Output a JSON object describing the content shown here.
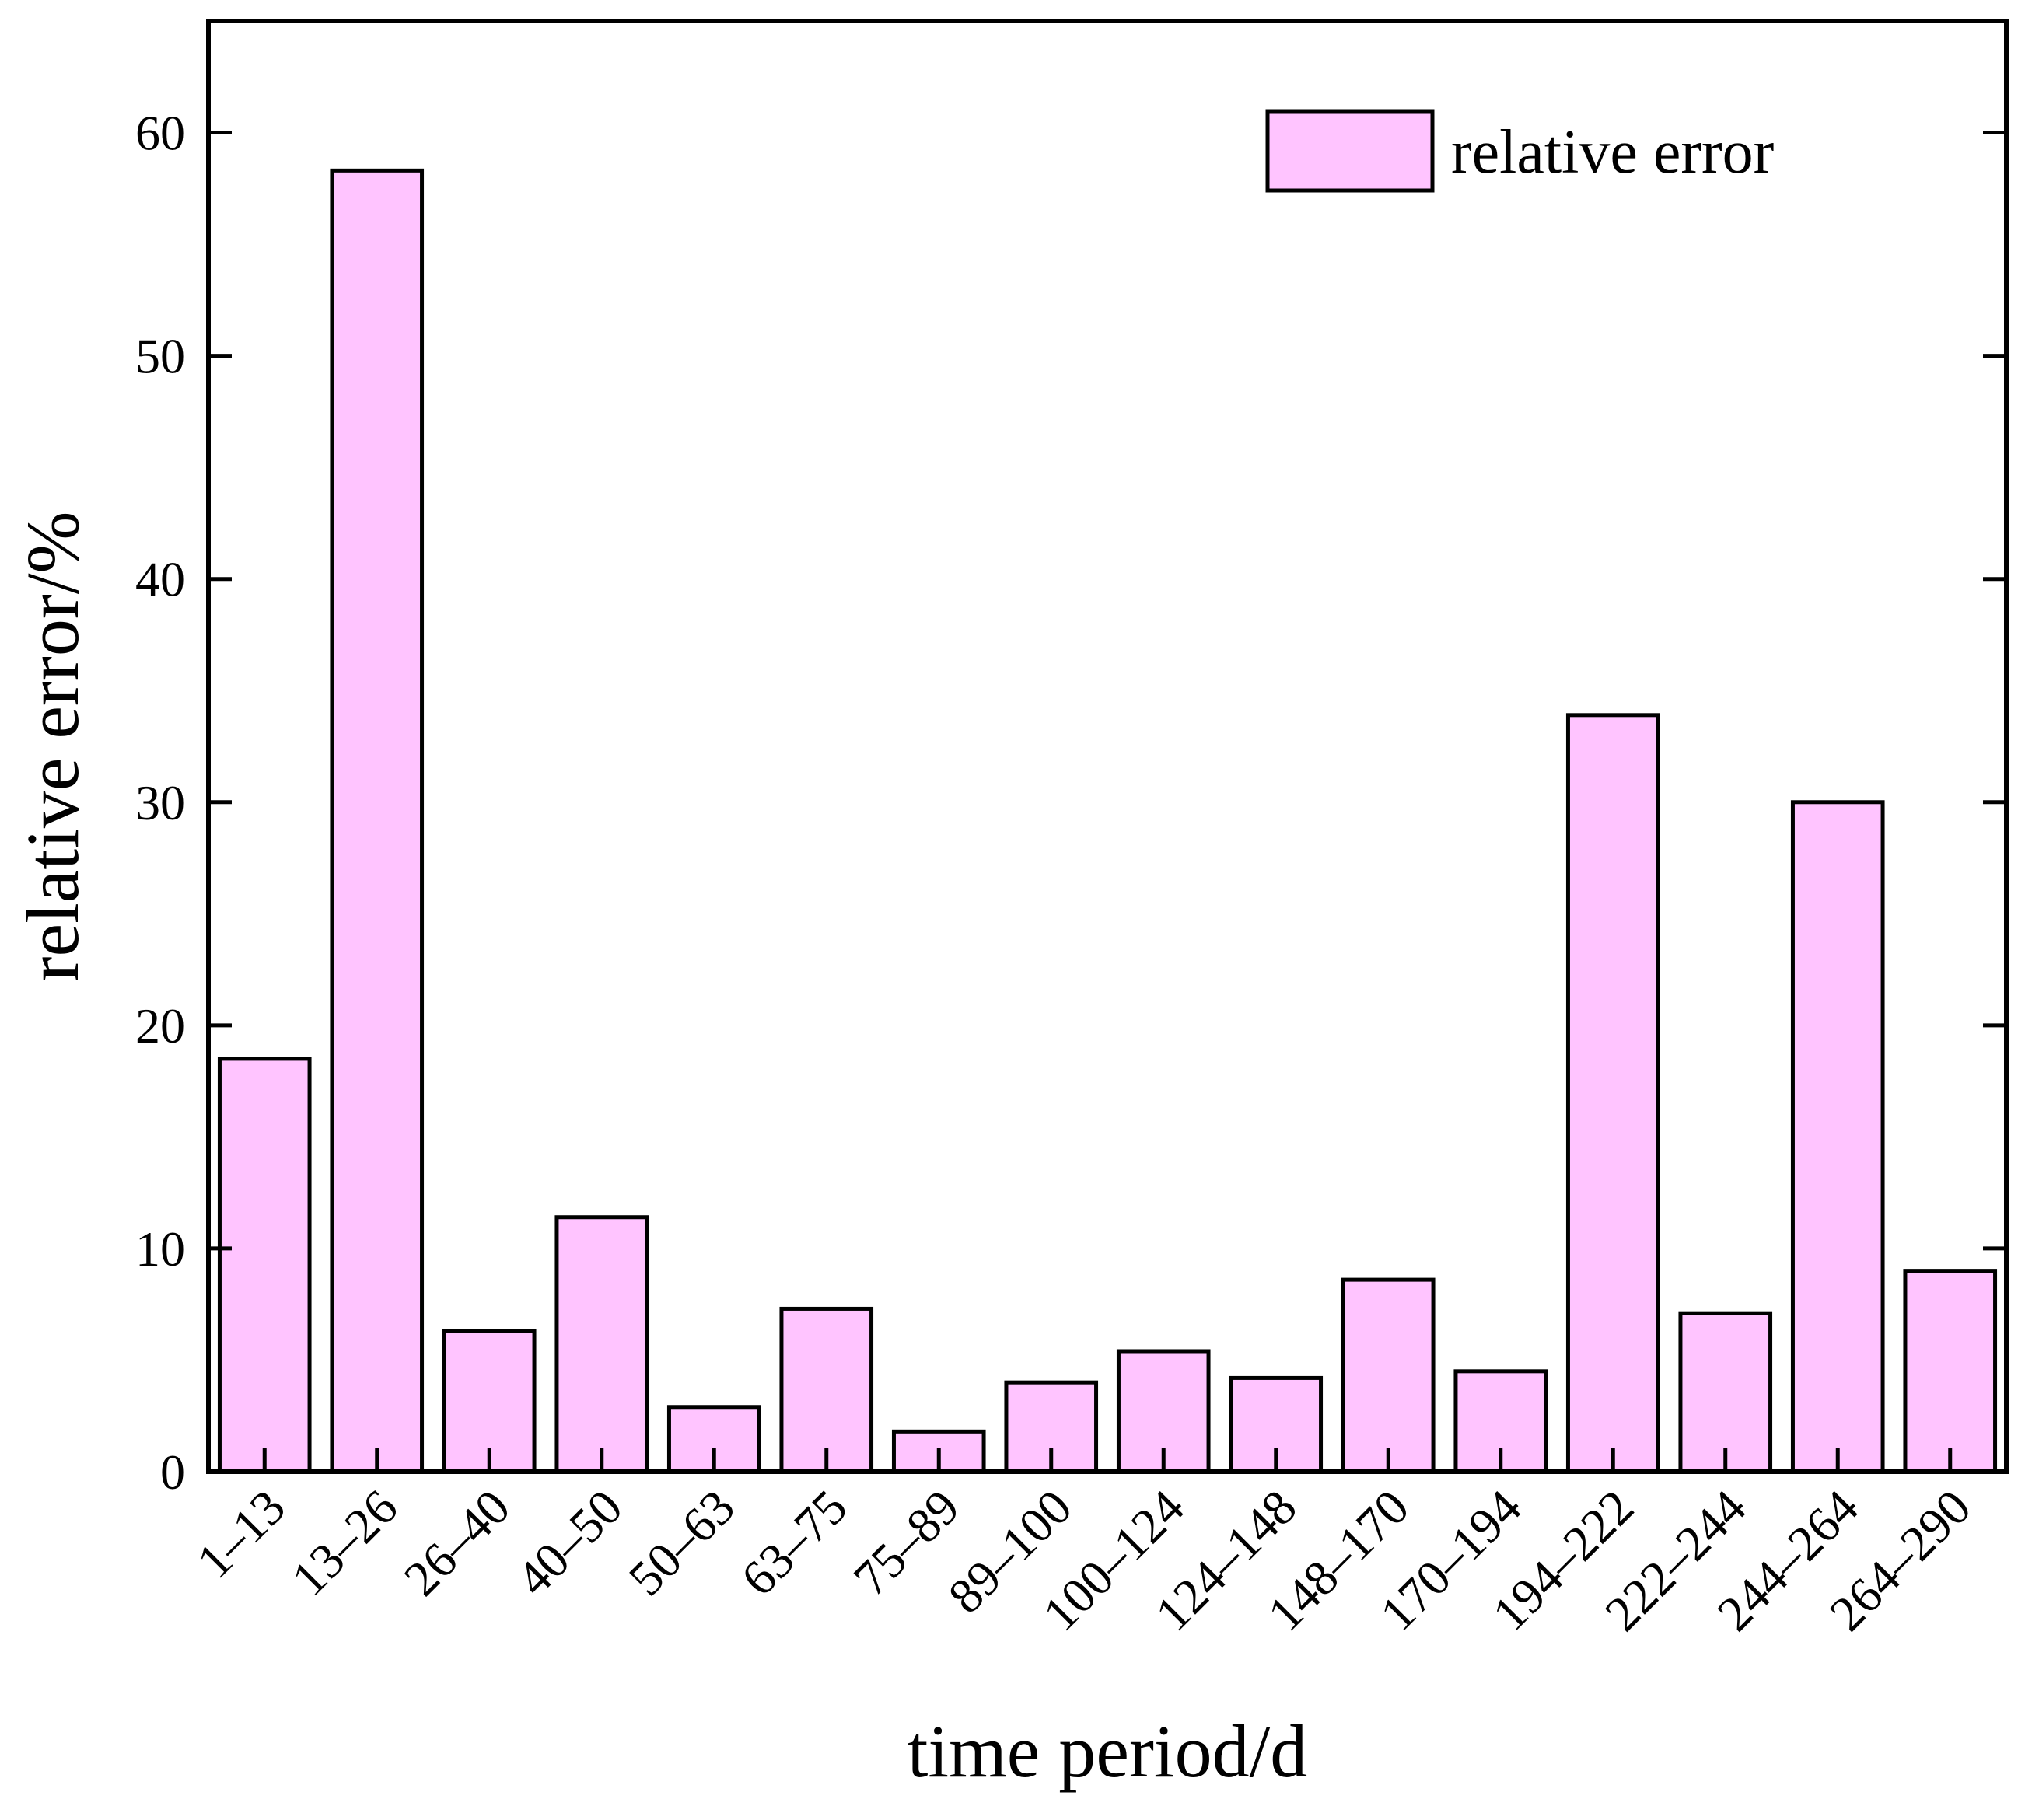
{
  "chart_data": {
    "type": "bar",
    "title": "",
    "xlabel": "time period/d",
    "ylabel": "relative error/%",
    "categories": [
      "1–13",
      "13–26",
      "26–40",
      "40–50",
      "50–63",
      "63–75",
      "75–89",
      "89–100",
      "100–124",
      "124–148",
      "148–170",
      "170–194",
      "194–222",
      "222–244",
      "244–264",
      "264–290"
    ],
    "series": [
      {
        "name": "relative error",
        "values": [
          18.5,
          58.3,
          6.3,
          11.4,
          2.9,
          7.3,
          1.8,
          4.0,
          5.4,
          4.2,
          8.6,
          4.5,
          33.9,
          7.1,
          30.0,
          9.0
        ]
      }
    ],
    "ylim": [
      0,
      65
    ],
    "yticks": [
      0,
      10,
      20,
      30,
      40,
      50,
      60
    ],
    "grid": false,
    "legend_position": "top-right",
    "bar_color": "#ffc4ff",
    "edge_color": "#000000"
  }
}
